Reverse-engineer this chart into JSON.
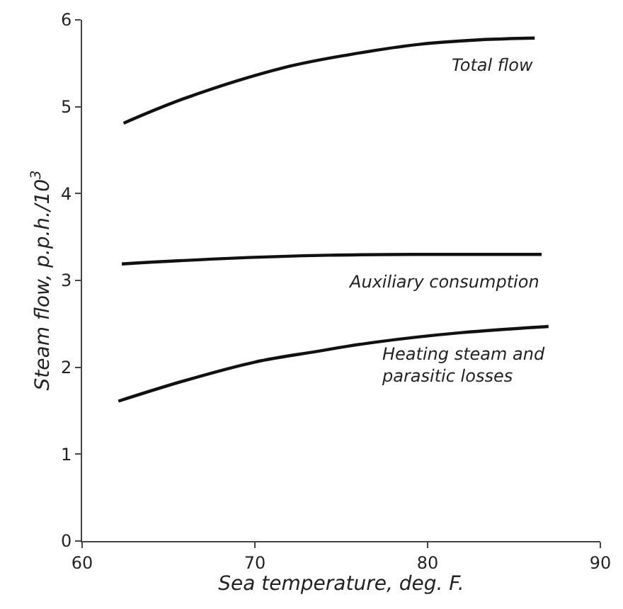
{
  "chart_data": {
    "type": "line",
    "xlabel": "Sea temperature, deg. F.",
    "ylabel": "Steam flow, p.p.h./10$^{3}$",
    "xlim": [
      60,
      90
    ],
    "xticks": [
      60,
      70,
      80,
      90
    ],
    "ylim": [
      0,
      6
    ],
    "yticks": [
      0,
      1,
      2,
      3,
      4,
      5,
      6
    ],
    "grid": false,
    "legend": false,
    "marker": "none",
    "line_style": "solid",
    "series": [
      {
        "name": "Total flow",
        "color": "#111111",
        "x": [
          62.4,
          66,
          71.7,
          75.5,
          79.6,
          83,
          86.2
        ],
        "values": [
          4.81,
          5.1,
          5.45,
          5.6,
          5.72,
          5.77,
          5.79
        ]
      },
      {
        "name": "Auxiliary consumption",
        "color": "#111111",
        "x": [
          62.3,
          68,
          74.3,
          80,
          86.6
        ],
        "values": [
          3.19,
          3.25,
          3.29,
          3.3,
          3.3
        ]
      },
      {
        "name": "Heating steam and\nparasitic losses",
        "color": "#111111",
        "x": [
          62.1,
          66,
          70,
          73.5,
          77,
          82,
          87
        ],
        "values": [
          1.61,
          1.85,
          2.06,
          2.18,
          2.29,
          2.4,
          2.47
        ]
      }
    ]
  }
}
